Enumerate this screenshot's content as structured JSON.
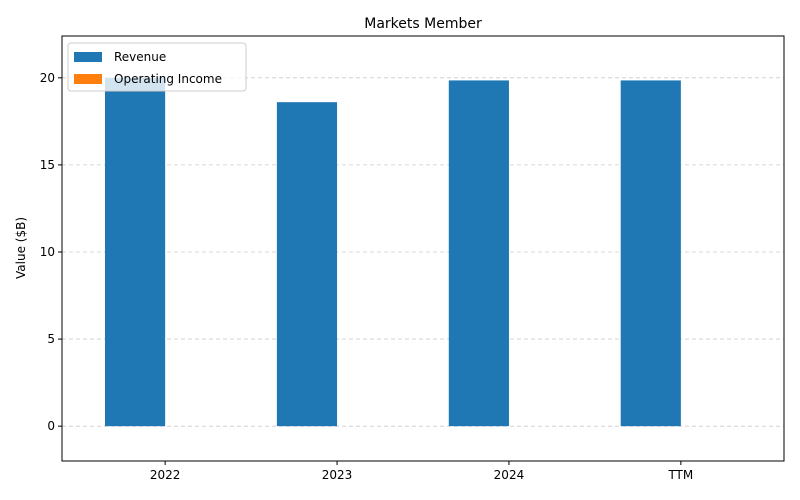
{
  "chart_data": {
    "type": "bar",
    "title": "Markets Member",
    "xlabel": "",
    "ylabel": "Value ($B)",
    "categories": [
      "2022",
      "2023",
      "2024",
      "TTM"
    ],
    "series": [
      {
        "name": "Revenue",
        "values": [
          20.0,
          18.6,
          19.85,
          19.85
        ],
        "color": "#1f77b4"
      },
      {
        "name": "Operating Income",
        "values": [
          0,
          0,
          0,
          0
        ],
        "color": "#ff7f0e"
      }
    ],
    "ylim": [
      -2,
      22.4
    ],
    "yticks": [
      0,
      5,
      10,
      15,
      20
    ],
    "grid": true,
    "legend_position": "top-left"
  }
}
